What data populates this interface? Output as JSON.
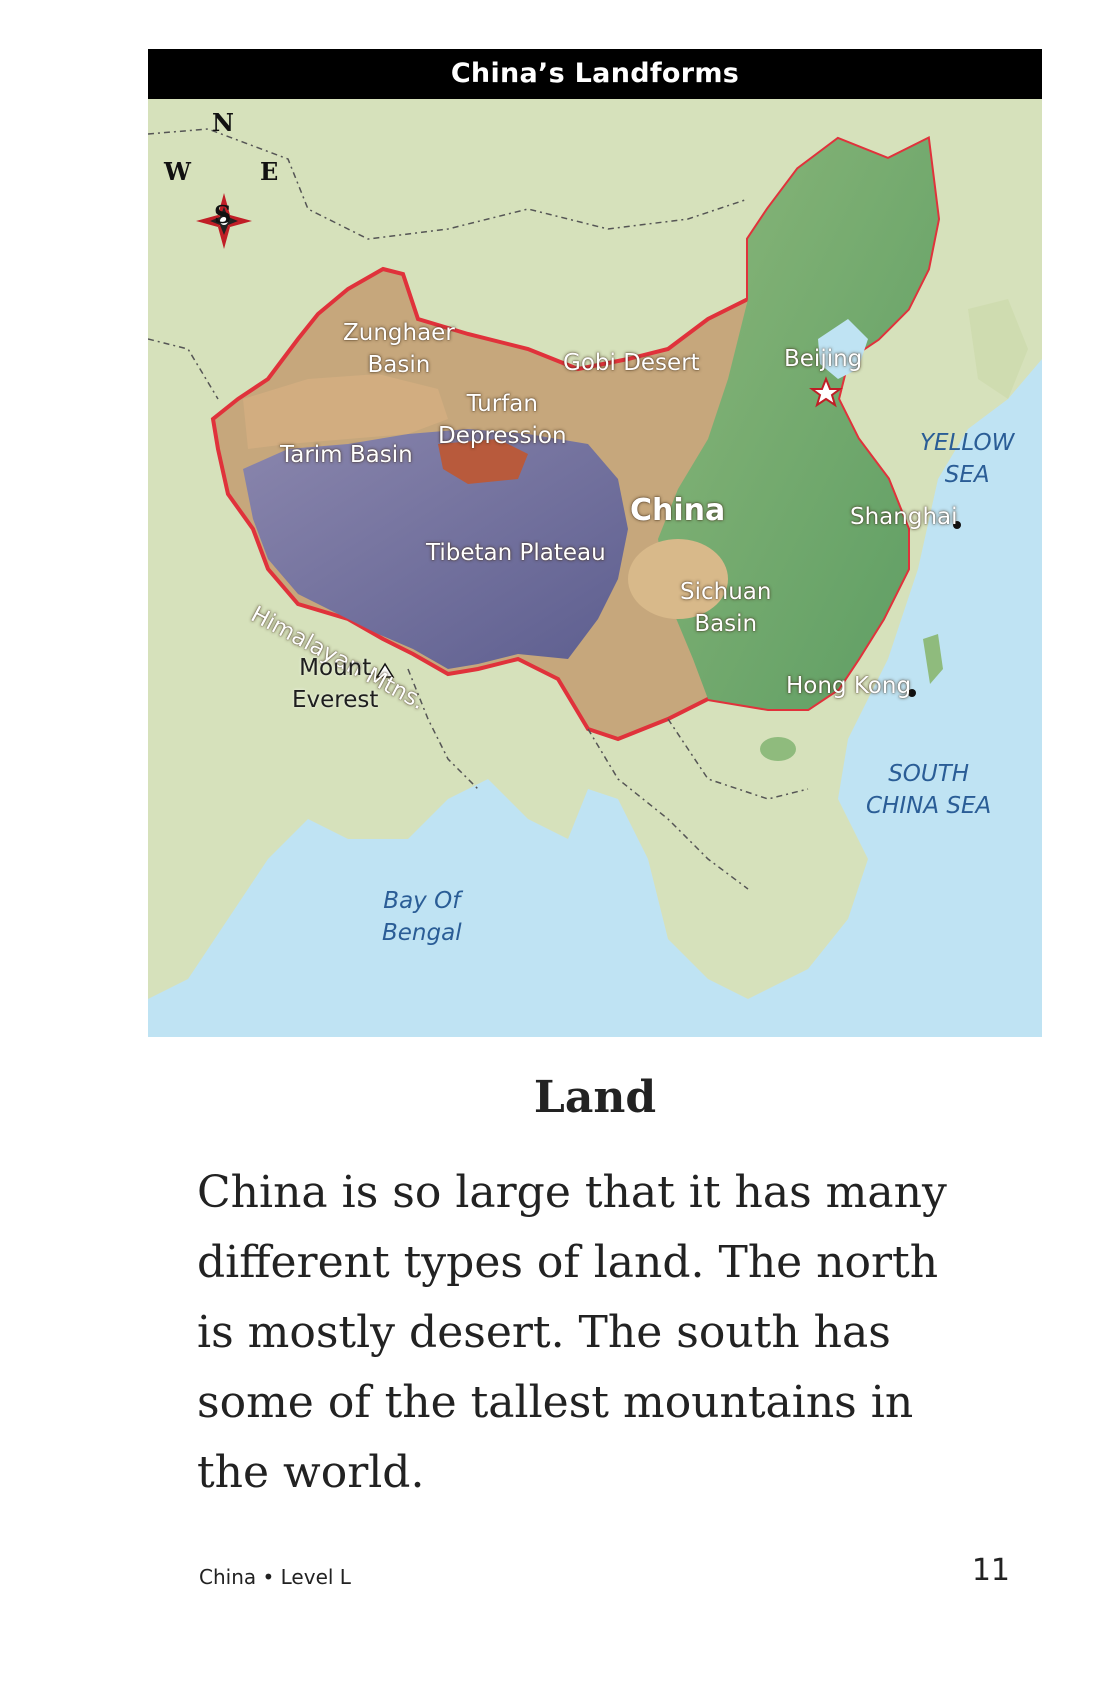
{
  "map": {
    "title": "China’s Landforms",
    "compass": {
      "n": "N",
      "s": "S",
      "e": "E",
      "w": "W"
    },
    "labels": {
      "zunghaer": "Zunghaer",
      "zunghaer2": "Basin",
      "gobi": "Gobi Desert",
      "beijing": "Beijing",
      "turfan": "Turfan",
      "turfan2": "Depression",
      "tarim": "Tarim Basin",
      "china": "China",
      "tibetan": "Tibetan Plateau",
      "shanghai": "Shanghai",
      "yellow": "YELLOW",
      "yellow2": "SEA",
      "sichuan": "Sichuan",
      "sichuan2": "Basin",
      "himalayan": "Himalayan Mtns.",
      "everest": "Mount",
      "everest2": "Everest",
      "hongkong": "Hong Kong",
      "southchina": "SOUTH",
      "southchina2": "CHINA SEA",
      "bengal": "Bay Of",
      "bengal2": "Bengal"
    },
    "colors": {
      "water": "#bfe3f3",
      "land": "#d3dfb7",
      "border": "#e0323b",
      "desert": "#c9a376",
      "plateau": "#6f6f9e",
      "lowland": "#6ea86a"
    }
  },
  "section": {
    "title": "Land",
    "body": "China is so large that it has many different types of land. The north is mostly desert. The south has some of the tallest mountains in the world."
  },
  "footer": {
    "book": "China • Level L",
    "page": "11"
  }
}
